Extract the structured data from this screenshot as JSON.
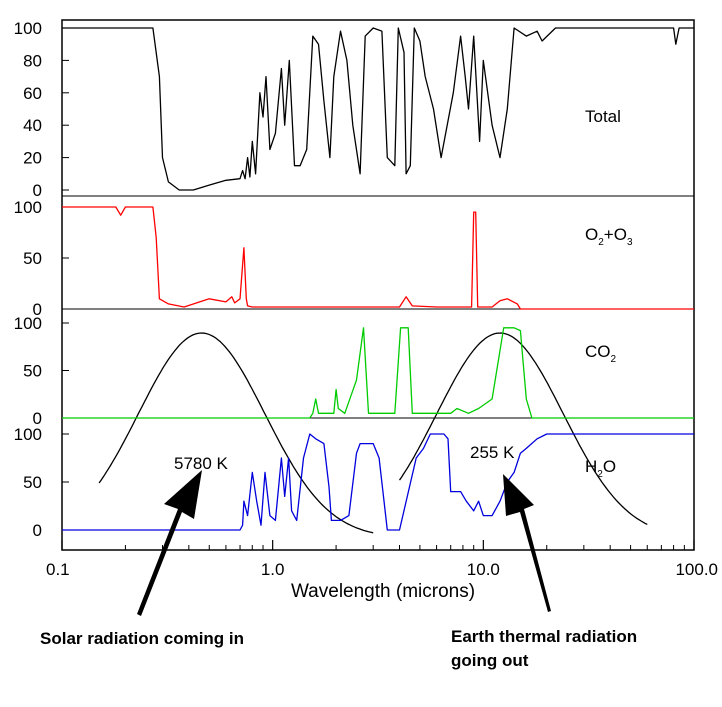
{
  "chart_data": {
    "type": "line",
    "xlabel": "Wavelength (microns)",
    "xscale": "log",
    "xlim": [
      0.1,
      100.0
    ],
    "xticks": [
      "0.1",
      "1.0",
      "10.0",
      "100.0"
    ],
    "panels": [
      {
        "label": "Total",
        "label_main": "Total",
        "label_sub1": "",
        "label_mid": "",
        "label_sub2": "",
        "color": "#000000",
        "yticks": [
          "0",
          "20",
          "40",
          "60",
          "80",
          "100"
        ],
        "ylim": [
          0,
          100
        ],
        "points": [
          [
            0.1,
            100
          ],
          [
            0.27,
            100
          ],
          [
            0.29,
            70
          ],
          [
            0.3,
            20
          ],
          [
            0.32,
            5
          ],
          [
            0.36,
            0
          ],
          [
            0.42,
            0
          ],
          [
            0.5,
            3
          ],
          [
            0.6,
            6
          ],
          [
            0.7,
            7
          ],
          [
            0.72,
            12
          ],
          [
            0.74,
            7
          ],
          [
            0.76,
            20
          ],
          [
            0.78,
            8
          ],
          [
            0.8,
            30
          ],
          [
            0.83,
            10
          ],
          [
            0.87,
            60
          ],
          [
            0.9,
            45
          ],
          [
            0.93,
            70
          ],
          [
            0.97,
            25
          ],
          [
            1.03,
            35
          ],
          [
            1.1,
            75
          ],
          [
            1.14,
            40
          ],
          [
            1.2,
            80
          ],
          [
            1.27,
            15
          ],
          [
            1.35,
            15
          ],
          [
            1.45,
            25
          ],
          [
            1.55,
            95
          ],
          [
            1.65,
            90
          ],
          [
            1.75,
            55
          ],
          [
            1.87,
            20
          ],
          [
            1.95,
            70
          ],
          [
            2.1,
            98
          ],
          [
            2.25,
            80
          ],
          [
            2.4,
            40
          ],
          [
            2.6,
            10
          ],
          [
            2.75,
            95
          ],
          [
            3.0,
            100
          ],
          [
            3.3,
            98
          ],
          [
            3.5,
            20
          ],
          [
            3.8,
            15
          ],
          [
            3.95,
            100
          ],
          [
            4.2,
            85
          ],
          [
            4.3,
            10
          ],
          [
            4.5,
            15
          ],
          [
            4.7,
            100
          ],
          [
            5.0,
            92
          ],
          [
            5.3,
            70
          ],
          [
            5.8,
            50
          ],
          [
            6.3,
            20
          ],
          [
            7.2,
            60
          ],
          [
            7.8,
            95
          ],
          [
            8.2,
            70
          ],
          [
            8.5,
            50
          ],
          [
            9.0,
            95
          ],
          [
            9.6,
            30
          ],
          [
            10.0,
            80
          ],
          [
            11.0,
            40
          ],
          [
            12.0,
            20
          ],
          [
            13.0,
            50
          ],
          [
            14.0,
            100
          ],
          [
            16.0,
            95
          ],
          [
            18.0,
            98
          ],
          [
            19.0,
            92
          ],
          [
            22.0,
            100
          ],
          [
            80,
            100
          ],
          [
            82,
            90
          ],
          [
            85,
            100
          ],
          [
            100,
            100
          ]
        ]
      },
      {
        "label": "O2+O3",
        "label_main": "O",
        "label_sub1": "2",
        "label_mid": "+O",
        "label_sub2": "3",
        "color": "#ff0000",
        "yticks": [
          "0",
          "50",
          "100"
        ],
        "ylim": [
          0,
          100
        ],
        "points": [
          [
            0.1,
            100
          ],
          [
            0.18,
            100
          ],
          [
            0.19,
            92
          ],
          [
            0.2,
            100
          ],
          [
            0.27,
            100
          ],
          [
            0.28,
            70
          ],
          [
            0.29,
            10
          ],
          [
            0.32,
            5
          ],
          [
            0.38,
            2
          ],
          [
            0.5,
            10
          ],
          [
            0.6,
            7
          ],
          [
            0.64,
            12
          ],
          [
            0.66,
            6
          ],
          [
            0.7,
            10
          ],
          [
            0.73,
            60
          ],
          [
            0.75,
            10
          ],
          [
            0.76,
            3
          ],
          [
            0.8,
            2
          ],
          [
            2.0,
            2
          ],
          [
            4.0,
            2
          ],
          [
            4.3,
            12
          ],
          [
            4.6,
            3
          ],
          [
            6.0,
            2
          ],
          [
            8.8,
            2
          ],
          [
            9.0,
            95
          ],
          [
            9.2,
            95
          ],
          [
            9.4,
            2
          ],
          [
            11.0,
            2
          ],
          [
            12.0,
            8
          ],
          [
            13.0,
            10
          ],
          [
            14.5,
            5
          ],
          [
            15.0,
            0
          ],
          [
            100,
            0
          ]
        ]
      },
      {
        "label": "CO2",
        "label_main": "CO",
        "label_sub1": "2",
        "label_mid": "",
        "label_sub2": "",
        "color": "#00cc00",
        "yticks": [
          "0",
          "50",
          "100"
        ],
        "ylim": [
          0,
          100
        ],
        "points": [
          [
            0.1,
            0
          ],
          [
            1.5,
            0
          ],
          [
            1.55,
            5
          ],
          [
            1.6,
            20
          ],
          [
            1.65,
            5
          ],
          [
            1.95,
            5
          ],
          [
            2.0,
            30
          ],
          [
            2.05,
            10
          ],
          [
            2.2,
            5
          ],
          [
            2.5,
            40
          ],
          [
            2.7,
            95
          ],
          [
            2.85,
            5
          ],
          [
            3.8,
            5
          ],
          [
            4.05,
            95
          ],
          [
            4.4,
            95
          ],
          [
            4.6,
            5
          ],
          [
            7.0,
            5
          ],
          [
            7.5,
            10
          ],
          [
            8.5,
            5
          ],
          [
            9.5,
            10
          ],
          [
            11.0,
            20
          ],
          [
            12.5,
            95
          ],
          [
            14.0,
            95
          ],
          [
            15.0,
            92
          ],
          [
            16.0,
            20
          ],
          [
            17.0,
            0
          ],
          [
            100,
            0
          ]
        ]
      },
      {
        "label": "H2O",
        "label_main": "H",
        "label_sub1": "2",
        "label_mid": "O",
        "label_sub2": "",
        "color": "#0000dd",
        "yticks": [
          "0",
          "50",
          "100"
        ],
        "ylim": [
          0,
          100
        ],
        "points": [
          [
            0.1,
            0
          ],
          [
            0.7,
            0
          ],
          [
            0.72,
            5
          ],
          [
            0.73,
            30
          ],
          [
            0.76,
            15
          ],
          [
            0.8,
            60
          ],
          [
            0.84,
            30
          ],
          [
            0.88,
            5
          ],
          [
            0.92,
            60
          ],
          [
            0.97,
            15
          ],
          [
            1.03,
            10
          ],
          [
            1.1,
            75
          ],
          [
            1.14,
            35
          ],
          [
            1.19,
            75
          ],
          [
            1.23,
            20
          ],
          [
            1.3,
            10
          ],
          [
            1.4,
            75
          ],
          [
            1.5,
            100
          ],
          [
            1.6,
            95
          ],
          [
            1.75,
            90
          ],
          [
            1.85,
            45
          ],
          [
            1.9,
            10
          ],
          [
            2.1,
            10
          ],
          [
            2.3,
            15
          ],
          [
            2.5,
            80
          ],
          [
            2.6,
            90
          ],
          [
            3.0,
            90
          ],
          [
            3.2,
            75
          ],
          [
            3.5,
            0
          ],
          [
            4.0,
            0
          ],
          [
            4.8,
            75
          ],
          [
            5.2,
            85
          ],
          [
            5.6,
            100
          ],
          [
            6.5,
            100
          ],
          [
            6.8,
            95
          ],
          [
            7.0,
            40
          ],
          [
            7.8,
            40
          ],
          [
            8.3,
            30
          ],
          [
            9.0,
            20
          ],
          [
            9.5,
            30
          ],
          [
            10.0,
            15
          ],
          [
            11.0,
            15
          ],
          [
            12.0,
            30
          ],
          [
            13.0,
            50
          ],
          [
            14.0,
            60
          ],
          [
            15.0,
            80
          ],
          [
            16.0,
            85
          ],
          [
            18.0,
            95
          ],
          [
            20.0,
            100
          ],
          [
            100,
            100
          ]
        ]
      }
    ],
    "blackbody_curves": [
      {
        "temp_label": "5780 K",
        "center_um": 0.46,
        "sigma_log": 0.3,
        "xmin": 0.15,
        "xmax": 3.0
      },
      {
        "temp_label": "255 K",
        "center_um": 12.0,
        "sigma_log": 0.3,
        "xmin": 4.0,
        "xmax": 60.0
      }
    ],
    "annotations": [
      {
        "line1": "Solar radiation coming in",
        "line2": ""
      },
      {
        "line1": "Earth thermal radiation",
        "line2": "going out"
      }
    ]
  }
}
